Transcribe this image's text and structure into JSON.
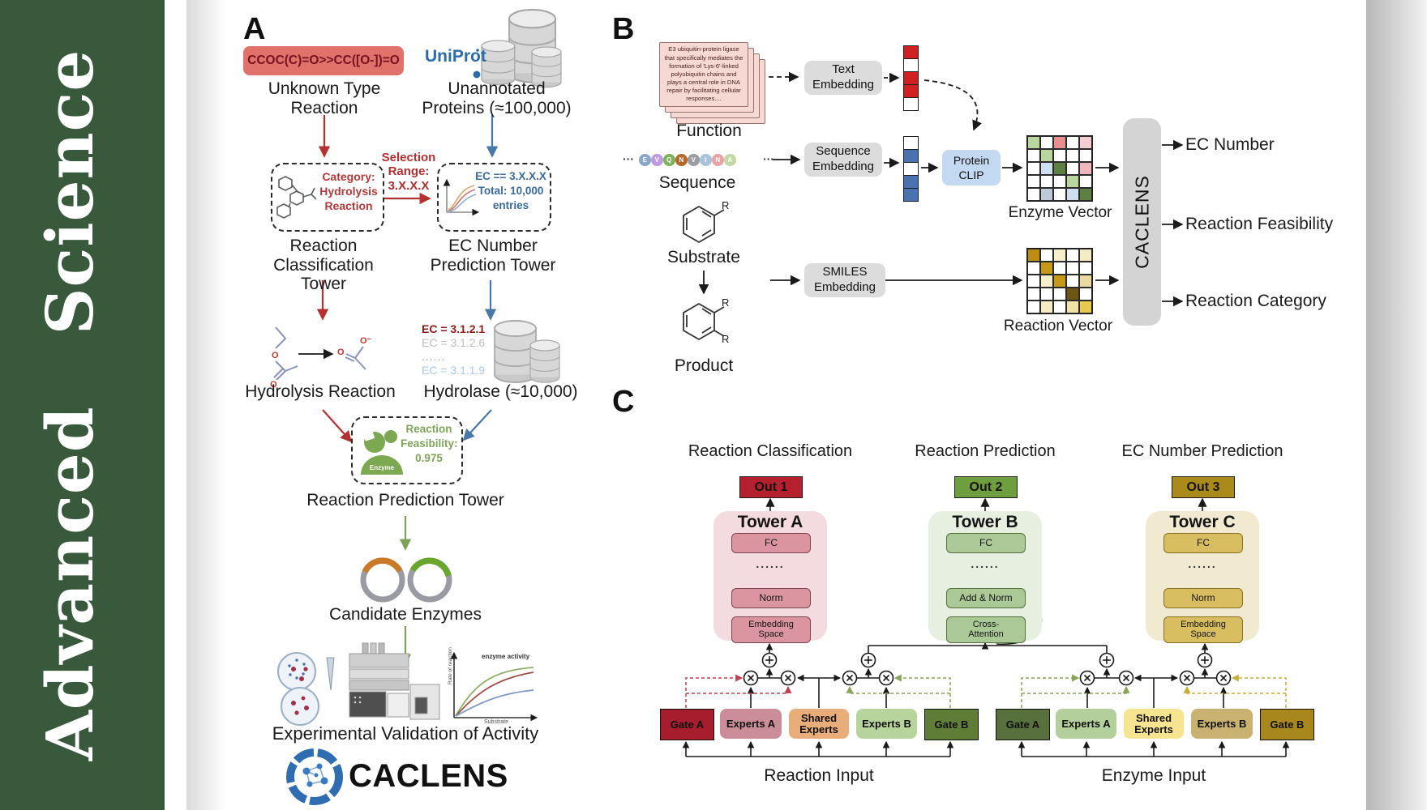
{
  "journal": {
    "word1": "Advanced",
    "word2": "Science"
  },
  "panelA": {
    "label": "A",
    "smiles": "CCOC(C)=O>>CC([O-])=O",
    "unknown_type": {
      "line1": "Unknown Type",
      "line2": "Reaction"
    },
    "uniprot": "UniProt",
    "unannotated": {
      "line1": "Unannotated",
      "line2": "Proteins (≈100,000)"
    },
    "selection_range": {
      "lines": [
        "Selection",
        "Range:",
        "3.X.X.X"
      ]
    },
    "classification_box": {
      "lines": [
        "Category:",
        "Hydrolysis",
        "Reaction"
      ]
    },
    "ec_box": {
      "lines": [
        "EC == 3.X.X.X",
        "Total: 10,000",
        "entries"
      ]
    },
    "towers": {
      "classification": {
        "line1": "Reaction",
        "line2": "Classification Tower"
      },
      "ec": {
        "line1": "EC Number",
        "line2": "Prediction Tower"
      },
      "prediction": "Reaction Prediction Tower"
    },
    "hydrolysis_reaction": "Hydrolysis Reaction",
    "ec_list": {
      "top": "EC = 3.1.2.1",
      "second": "EC = 3.1.2.6",
      "dots": "......",
      "last": "EC = 3.1.1.9"
    },
    "hydrolase": "Hydrolase (≈10,000)",
    "enzyme_badge": "Enzyme",
    "feasibility": {
      "lines": [
        "Reaction",
        "Feasibility:",
        "0.975"
      ]
    },
    "candidate_enzymes": "Candidate Enzymes",
    "experimental_validation": "Experimental Validation of Activity",
    "activity_plot": {
      "curve_label": "enzyme activity",
      "ylabel": "Rate of reaction",
      "xlabel": "Substrate"
    },
    "brand": "CACLENS"
  },
  "panelB": {
    "label": "B",
    "function_card": {
      "lines": [
        "E3 ubiquitin-protein ligase",
        "that specifically mediates the",
        "formation of 'Lys-6'-linked",
        "polyubiquitin chains and",
        "plays a central role in DNA",
        "repair by facilitating cellular",
        "responses...."
      ]
    },
    "function_label": "Function",
    "ellipsis": "···",
    "residues": [
      {
        "t": "E",
        "c": "#8ba7cc"
      },
      {
        "t": "V",
        "c": "#bf9be0"
      },
      {
        "t": "Q",
        "c": "#7fb25c"
      },
      {
        "t": "N",
        "c": "#b5682a"
      },
      {
        "t": "V",
        "c": "#9b9ba3"
      },
      {
        "t": "I",
        "c": "#a9c3dc"
      },
      {
        "t": "N",
        "c": "#e8a4a4"
      },
      {
        "t": "A",
        "c": "#c3d9a4"
      }
    ],
    "sequence_label": "Sequence",
    "substrate_label": "Substrate",
    "product_label": "Product",
    "r_group": "R",
    "text_embedding": {
      "line1": "Text",
      "line2": "Embedding"
    },
    "sequence_embedding": {
      "line1": "Sequence",
      "line2": "Embedding"
    },
    "smiles_embedding": {
      "line1": "SMILES",
      "line2": "Embedding"
    },
    "protein_clip": {
      "line1": "Protein",
      "line2": "CLIP"
    },
    "text_vector": [
      "#cf2121",
      "#ffffff",
      "#cf2121",
      "#cf2121",
      "#ffffff"
    ],
    "seq_vector": [
      "#ffffff",
      "#4a72b0",
      "#ffffff",
      "#4a72b0",
      "#4a72b0"
    ],
    "enzyme_matrix": [
      [
        "#b9d79c",
        "#ffffff",
        "#e78f8f",
        "#ffffff",
        "#f5cdd1"
      ],
      [
        "#ffffff",
        "#b9d79c",
        "#ffffff",
        "#ffffff",
        "#ffffff"
      ],
      [
        "#ffffff",
        "#cfdff0",
        "#5f8042",
        "#ffffff",
        "#f0b6ba"
      ],
      [
        "#ffffff",
        "#ffffff",
        "#ffffff",
        "#b9d79c",
        "#ffffff"
      ],
      [
        "#ffffff",
        "#bcc9d6",
        "#ffffff",
        "#cfdff0",
        "#5f8042"
      ]
    ],
    "reaction_matrix": [
      [
        "#bb8e13",
        "#ffffff",
        "#f6efcb",
        "#ffffff",
        "#f3ecc4"
      ],
      [
        "#ffffff",
        "#c59a16",
        "#ffffff",
        "#ffffff",
        "#ffffff"
      ],
      [
        "#ffffff",
        "#f6efcb",
        "#c59a16",
        "#ffffff",
        "#ead9a0"
      ],
      [
        "#ffffff",
        "#ffffff",
        "#ffffff",
        "#6e5511",
        "#ffffff"
      ],
      [
        "#ffffff",
        "#f3ecc4",
        "#ffffff",
        "#f0e2a8",
        "#e7c94f"
      ]
    ],
    "enzyme_vector_label": "Enzyme Vector",
    "reaction_vector_label": "Reaction Vector",
    "caclens": "CACLENS",
    "outputs": [
      "EC Number",
      "Reaction Feasibility",
      "Reaction Category"
    ]
  },
  "panelC": {
    "label": "C",
    "columns": [
      {
        "title": "Reaction Classification",
        "out": "Out 1",
        "tower": "Tower A",
        "fc": "FC",
        "dots": "......",
        "mid": "Norm",
        "bottom": "Embedding Space"
      },
      {
        "title": "Reaction Prediction",
        "out": "Out 2",
        "tower": "Tower B",
        "fc": "FC",
        "dots": "......",
        "mid": "Add & Norm",
        "bottom": "Cross-Attention"
      },
      {
        "title": "EC Number Prediction",
        "out": "Out 3",
        "tower": "Tower C",
        "fc": "FC",
        "dots": "......",
        "mid": "Norm",
        "bottom": "Embedding Space"
      }
    ],
    "moe": [
      {
        "input": "Reaction Input",
        "boxes": [
          "Gate A",
          "Experts A",
          "Shared Experts",
          "Experts B",
          "Gate B"
        ]
      },
      {
        "input": "Enzyme Input",
        "boxes": [
          "Gate A",
          "Experts A",
          "Shared Experts",
          "Experts B",
          "Gate B"
        ]
      }
    ]
  },
  "palette": {
    "sidebar_green": "#38593c",
    "arrow_red": "#b3312f",
    "arrow_blue": "#4878a8",
    "arrow_green": "#7fa05a",
    "uniprot_blue": "#2a6da8",
    "smiles_box": "#e0716b",
    "caclens_bar": "#d4d4d4",
    "out1": "#b5202f",
    "out2": "#6f9e3e",
    "out3": "#ab8a1c"
  }
}
